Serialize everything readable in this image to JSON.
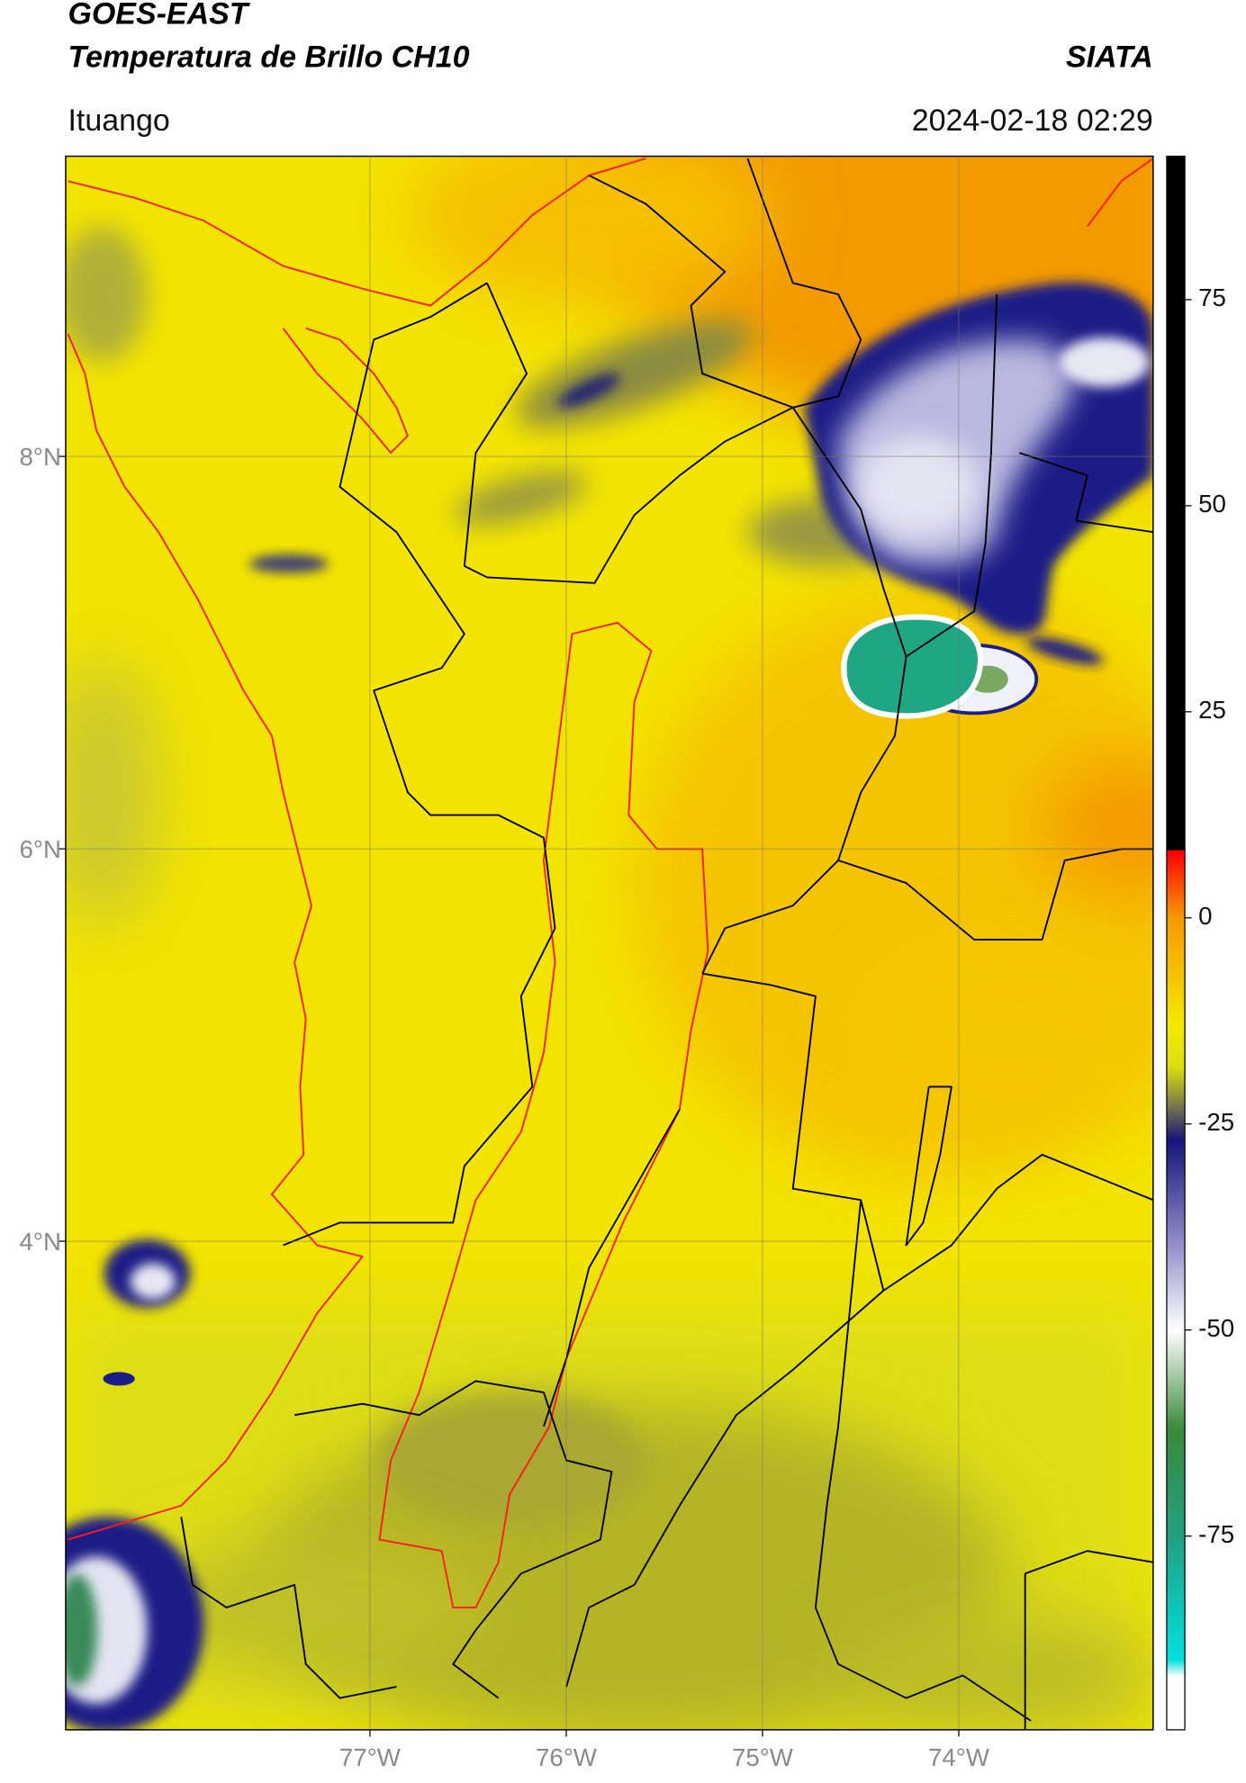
{
  "header": {
    "title": "GOES-EAST",
    "subtitle": "Temperatura de Brillo CH10",
    "source": "SIATA",
    "location": "Ituango",
    "datetime": "2024-02-18 02:29"
  },
  "map": {
    "xlim": [
      -78.55,
      -73.01
    ],
    "ylim": [
      1.51,
      9.53
    ],
    "grid": true,
    "xticks": [
      {
        "value": -77,
        "label": "77°W"
      },
      {
        "value": -76,
        "label": "76°W"
      },
      {
        "value": -75,
        "label": "75°W"
      },
      {
        "value": -74,
        "label": "74°W"
      }
    ],
    "yticks": [
      {
        "value": 8,
        "label": "8°N"
      },
      {
        "value": 6,
        "label": "6°N"
      },
      {
        "value": 4,
        "label": "4°N"
      }
    ]
  },
  "colorbar": {
    "lim": [
      -98.5,
      92.4
    ],
    "ticks": [
      75,
      50,
      25,
      0,
      -25,
      -50,
      -75
    ],
    "stops": [
      {
        "value": 92.4,
        "color": "#000000"
      },
      {
        "value": 8.3,
        "color": "#000000"
      },
      {
        "value": 8.1,
        "color": "#ff0000"
      },
      {
        "value": 0,
        "color": "#f59a00"
      },
      {
        "value": -13,
        "color": "#f5e800"
      },
      {
        "value": -18,
        "color": "#dede10"
      },
      {
        "value": -22,
        "color": "#8a8a40"
      },
      {
        "value": -27,
        "color": "#15157a"
      },
      {
        "value": -40,
        "color": "#9494cc"
      },
      {
        "value": -50,
        "color": "#ffffff"
      },
      {
        "value": -62,
        "color": "#3a8a3a"
      },
      {
        "value": -75,
        "color": "#20a080"
      },
      {
        "value": -90,
        "color": "#00e0e0"
      },
      {
        "value": -92,
        "color": "#ffffff"
      },
      {
        "value": -98.5,
        "color": "#ffffff"
      }
    ]
  }
}
